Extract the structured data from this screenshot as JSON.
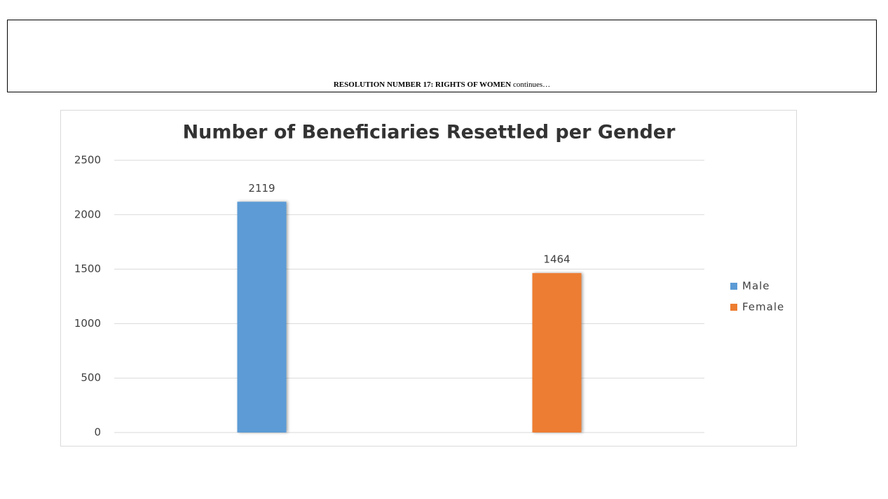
{
  "header": {
    "title": "RESOLUTION NUMBER 17: RIGHTS OF WOMEN",
    "suffix": "continues…"
  },
  "chart_data": {
    "type": "bar",
    "title": "Number of Beneficiaries Resettled per Gender",
    "categories": [
      null,
      null
    ],
    "series": [
      {
        "name": "Male",
        "color": "#5b9bd5",
        "values": [
          2119,
          null
        ]
      },
      {
        "name": "Female",
        "color": "#ed7d31",
        "values": [
          null,
          1464
        ]
      }
    ],
    "ylim": [
      0,
      2500
    ],
    "yticks": [
      0,
      500,
      1000,
      1500,
      2000,
      2500
    ],
    "grid": true,
    "legend": "right"
  }
}
